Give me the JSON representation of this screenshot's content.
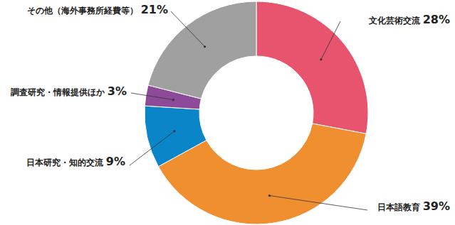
{
  "chart_data": {
    "type": "pie",
    "categories": [
      "文化芸術交流",
      "日本語教育",
      "日本研究・知的交流",
      "調査研究・情報提供ほか",
      "その他（海外事務所経費等）"
    ],
    "values": [
      28,
      39,
      9,
      3,
      21
    ],
    "value_labels": [
      "28%",
      "39%",
      "9%",
      "3%",
      "21%"
    ],
    "colors": [
      "#e8546d",
      "#ef8f2f",
      "#0a85c8",
      "#8d4a98",
      "#a0a0a0"
    ],
    "data_labels": true
  }
}
